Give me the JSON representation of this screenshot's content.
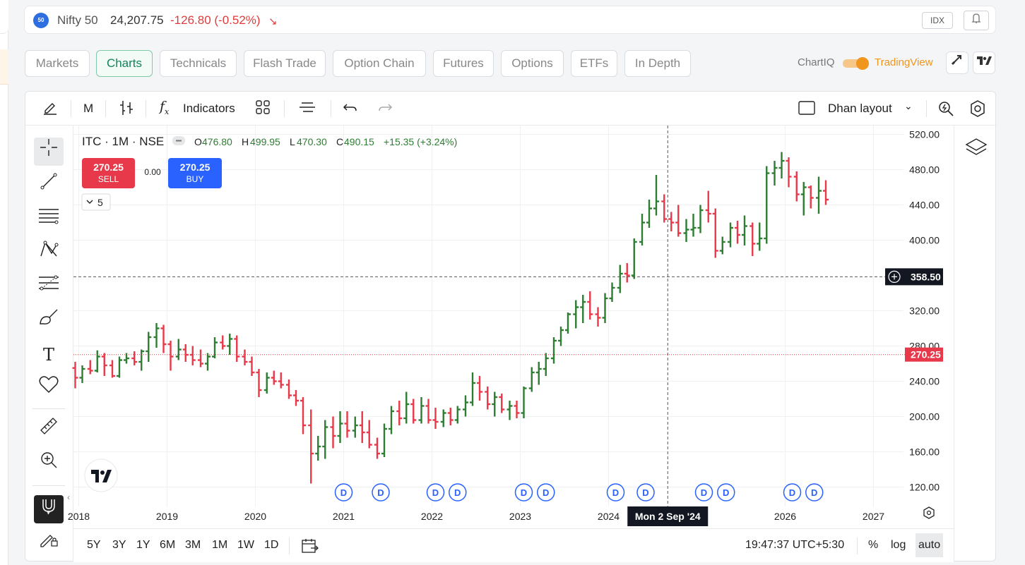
{
  "header": {
    "logo_text": "50",
    "index_name": "Nifty 50",
    "price": "24,207.75",
    "change": "-126.80 (-0.52%)",
    "arrow": "↘",
    "type_badge": "IDX"
  },
  "tabs": [
    "Markets",
    "Charts",
    "Technicals",
    "Flash Trade",
    "Option Chain",
    "Futures",
    "Options",
    "ETFs",
    "In Depth"
  ],
  "active_tab": "Charts",
  "providers": {
    "left": "ChartIQ",
    "right": "TradingView",
    "selected": "TradingView"
  },
  "toolbar": {
    "interval": "M",
    "indicators": "Indicators",
    "layout_name": "Dhan layout"
  },
  "legend": {
    "symbol": "ITC · 1M · NSE",
    "open_label": "O",
    "open": "476.80",
    "high_label": "H",
    "high": "499.95",
    "low_label": "L",
    "low": "470.30",
    "close_label": "C",
    "close": "490.15",
    "change": "+15.35 (+3.24%)"
  },
  "trade": {
    "sell_price": "270.25",
    "sell_label": "SELL",
    "spread": "0.00",
    "buy_price": "270.25",
    "buy_label": "BUY",
    "collapse_count": "5"
  },
  "crosshair": {
    "price_label": "358.50",
    "date_label": "Mon 2 Sep '24"
  },
  "last_price_label": "270.25",
  "dividend_marker": "D",
  "bottom_bar": {
    "ranges": [
      "5Y",
      "3Y",
      "1Y",
      "6M",
      "3M",
      "1M",
      "1W",
      "1D"
    ],
    "clock": "19:47:37 UTC+5:30",
    "percent": "%",
    "log": "log",
    "auto": "auto"
  },
  "colors": {
    "up": "#2e7d32",
    "down": "#e8394a",
    "accent": "#13845a",
    "buy": "#2962ff",
    "sell": "#e8394a"
  },
  "chart_data": {
    "type": "ohlc",
    "x_tick_labels": [
      "2018",
      "2019",
      "2020",
      "2021",
      "2022",
      "2023",
      "2024",
      "2026",
      "2027"
    ],
    "y_tick_labels": [
      "520.00",
      "480.00",
      "440.00",
      "400.00",
      "320.00",
      "280.00",
      "240.00",
      "200.00",
      "160.00",
      "120.00"
    ],
    "y_ticks": [
      520,
      480,
      440,
      400,
      320,
      280,
      240,
      200,
      160,
      120
    ],
    "ylim": [
      98,
      530
    ],
    "x_range": [
      2017.94,
      2027.34
    ],
    "dividend_dates": [
      2021.0,
      2021.42,
      2022.04,
      2022.29,
      2023.04,
      2023.29,
      2024.08,
      2024.42,
      2025.08,
      2025.33,
      2026.08,
      2026.33
    ],
    "series": [
      {
        "bars": [
          [
            2017.96,
            255,
            262,
            232,
            244
          ],
          [
            2018.04,
            244,
            258,
            238,
            254
          ],
          [
            2018.13,
            254,
            264,
            248,
            252
          ],
          [
            2018.21,
            252,
            275,
            250,
            268
          ],
          [
            2018.29,
            268,
            272,
            246,
            258
          ],
          [
            2018.38,
            258,
            264,
            244,
            246
          ],
          [
            2018.46,
            246,
            268,
            244,
            264
          ],
          [
            2018.54,
            264,
            272,
            260,
            266
          ],
          [
            2018.63,
            266,
            274,
            258,
            262
          ],
          [
            2018.71,
            262,
            276,
            252,
            274
          ],
          [
            2018.79,
            274,
            296,
            262,
            290
          ],
          [
            2018.88,
            290,
            306,
            278,
            300
          ],
          [
            2018.96,
            300,
            304,
            272,
            282
          ],
          [
            2019.04,
            282,
            286,
            252,
            268
          ],
          [
            2019.13,
            268,
            288,
            264,
            276
          ],
          [
            2019.21,
            276,
            282,
            262,
            270
          ],
          [
            2019.29,
            270,
            280,
            258,
            264
          ],
          [
            2019.38,
            264,
            276,
            256,
            260
          ],
          [
            2019.46,
            260,
            272,
            252,
            268
          ],
          [
            2019.54,
            268,
            290,
            266,
            284
          ],
          [
            2019.63,
            284,
            292,
            276,
            280
          ],
          [
            2019.71,
            280,
            294,
            270,
            288
          ],
          [
            2019.79,
            288,
            292,
            262,
            268
          ],
          [
            2019.88,
            268,
            276,
            258,
            262
          ],
          [
            2019.96,
            262,
            268,
            246,
            250
          ],
          [
            2020.04,
            250,
            254,
            222,
            230
          ],
          [
            2020.13,
            230,
            250,
            226,
            244
          ],
          [
            2020.21,
            244,
            252,
            236,
            240
          ],
          [
            2020.29,
            240,
            250,
            232,
            236
          ],
          [
            2020.38,
            236,
            242,
            220,
            224
          ],
          [
            2020.46,
            224,
            230,
            212,
            218
          ],
          [
            2020.54,
            218,
            222,
            180,
            190
          ],
          [
            2020.63,
            190,
            208,
            124,
            158
          ],
          [
            2020.71,
            158,
            178,
            150,
            166
          ],
          [
            2020.79,
            166,
            196,
            152,
            188
          ],
          [
            2020.88,
            188,
            200,
            164,
            178
          ],
          [
            2020.96,
            178,
            206,
            170,
            192
          ],
          [
            2021.04,
            192,
            206,
            176,
            184
          ],
          [
            2021.13,
            184,
            200,
            176,
            190
          ],
          [
            2021.21,
            190,
            206,
            170,
            182
          ],
          [
            2021.29,
            182,
            196,
            164,
            168
          ],
          [
            2021.38,
            168,
            176,
            152,
            158
          ],
          [
            2021.46,
            158,
            192,
            154,
            186
          ],
          [
            2021.54,
            186,
            212,
            180,
            206
          ],
          [
            2021.63,
            206,
            218,
            190,
            198
          ],
          [
            2021.71,
            198,
            228,
            192,
            214
          ],
          [
            2021.79,
            214,
            220,
            192,
            196
          ],
          [
            2021.88,
            196,
            222,
            192,
            212
          ],
          [
            2021.96,
            212,
            220,
            192,
            196
          ],
          [
            2022.04,
            196,
            210,
            186,
            194
          ],
          [
            2022.13,
            194,
            208,
            188,
            204
          ],
          [
            2022.21,
            204,
            210,
            190,
            196
          ],
          [
            2022.29,
            196,
            212,
            192,
            208
          ],
          [
            2022.38,
            208,
            224,
            200,
            216
          ],
          [
            2022.46,
            216,
            250,
            212,
            238
          ],
          [
            2022.54,
            238,
            246,
            218,
            228
          ],
          [
            2022.63,
            228,
            234,
            208,
            214
          ],
          [
            2022.71,
            214,
            228,
            200,
            222
          ],
          [
            2022.79,
            222,
            226,
            204,
            208
          ],
          [
            2022.88,
            208,
            218,
            196,
            212
          ],
          [
            2022.96,
            212,
            218,
            198,
            204
          ],
          [
            2023.04,
            204,
            234,
            198,
            232
          ],
          [
            2023.13,
            232,
            256,
            228,
            250
          ],
          [
            2023.21,
            250,
            262,
            236,
            254
          ],
          [
            2023.29,
            254,
            272,
            246,
            266
          ],
          [
            2023.38,
            266,
            290,
            260,
            286
          ],
          [
            2023.46,
            286,
            302,
            280,
            298
          ],
          [
            2023.54,
            298,
            318,
            294,
            316
          ],
          [
            2023.63,
            316,
            332,
            300,
            324
          ],
          [
            2023.71,
            324,
            338,
            306,
            330
          ],
          [
            2023.79,
            330,
            342,
            310,
            316
          ],
          [
            2023.88,
            316,
            324,
            302,
            312
          ],
          [
            2023.96,
            312,
            340,
            306,
            334
          ],
          [
            2024.04,
            334,
            352,
            330,
            346
          ],
          [
            2024.13,
            346,
            372,
            340,
            362
          ],
          [
            2024.21,
            362,
            374,
            352,
            360
          ],
          [
            2024.29,
            360,
            402,
            356,
            398
          ],
          [
            2024.38,
            398,
            430,
            394,
            420
          ],
          [
            2024.46,
            420,
            446,
            414,
            436
          ],
          [
            2024.54,
            436,
            474,
            428,
            444
          ],
          [
            2024.63,
            444,
            452,
            420,
            424
          ],
          [
            2024.71,
            424,
            432,
            410,
            420
          ],
          [
            2024.79,
            420,
            440,
            404,
            408
          ],
          [
            2024.88,
            408,
            424,
            398,
            412
          ],
          [
            2024.96,
            412,
            430,
            404,
            414
          ],
          [
            2025.04,
            414,
            440,
            408,
            434
          ],
          [
            2025.13,
            434,
            456,
            420,
            430
          ],
          [
            2025.21,
            430,
            436,
            380,
            388
          ],
          [
            2025.29,
            388,
            404,
            384,
            398
          ],
          [
            2025.38,
            398,
            420,
            392,
            414
          ],
          [
            2025.46,
            414,
            422,
            396,
            406
          ],
          [
            2025.54,
            406,
            428,
            394,
            416
          ],
          [
            2025.63,
            416,
            420,
            382,
            396
          ],
          [
            2025.71,
            396,
            420,
            388,
            402
          ],
          [
            2025.79,
            402,
            484,
            396,
            476
          ],
          [
            2025.88,
            476,
            490,
            462,
            482
          ],
          [
            2025.96,
            482,
            500,
            470,
            490
          ],
          [
            2026.04,
            490,
            494,
            460,
            472
          ],
          [
            2026.13,
            472,
            478,
            444,
            452
          ],
          [
            2026.21,
            452,
            466,
            428,
            460
          ],
          [
            2026.29,
            460,
            462,
            436,
            448
          ],
          [
            2026.38,
            448,
            472,
            430,
            456
          ],
          [
            2026.46,
            456,
            468,
            440,
            446
          ]
        ]
      }
    ]
  }
}
